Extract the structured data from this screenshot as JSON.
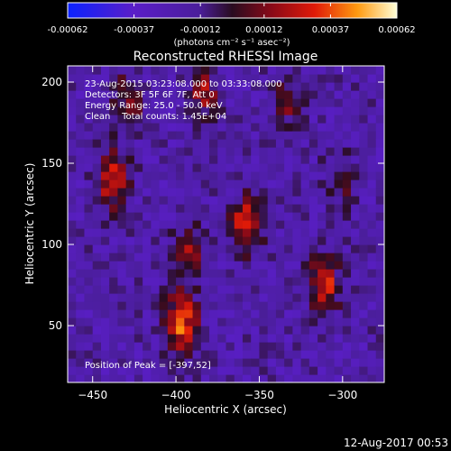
{
  "chart_data": {
    "type": "heatmap",
    "title": "Reconstructed RHESSI Image",
    "xlabel": "Heliocentric X (arcsec)",
    "ylabel": "Heliocentric Y (arcsec)",
    "xlim": [
      -465,
      -275
    ],
    "ylim": [
      15,
      210
    ],
    "x_ticks": [
      -450,
      -400,
      -350,
      -300
    ],
    "y_ticks": [
      50,
      100,
      150,
      200
    ],
    "colorbar": {
      "ticks": [
        "-0.00062",
        "-0.00037",
        "-0.00012",
        "0.00012",
        "0.00037",
        "0.00062"
      ],
      "tick_values": [
        -0.00062,
        -0.00037,
        -0.00012,
        0.00012,
        0.00037,
        0.00062
      ],
      "range": [
        -0.00062,
        0.00062
      ],
      "unit_label": "(photons cm⁻² s⁻¹ asec⁻²)"
    },
    "info_lines": [
      "23-Aug-2015 03:23:08.000 to 03:33:08.000",
      "Detectors: 3F 5F 6F 7F, Att 0",
      "Energy Range: 25.0 - 50.0 keV",
      "Clean    Total counts: 1.45E+04"
    ],
    "peak_label": "Position of Peak = [-397,52]",
    "peak_position": [
      -397,
      52
    ],
    "sources": [
      {
        "x": -397,
        "y": 52,
        "peak": 0.00062
      },
      {
        "x": -393,
        "y": 95,
        "peak": 0.00034
      },
      {
        "x": -358,
        "y": 112,
        "peak": 0.00052
      },
      {
        "x": -311,
        "y": 75,
        "peak": 0.0005
      },
      {
        "x": -302,
        "y": 140,
        "peak": 0.00022
      },
      {
        "x": -438,
        "y": 140,
        "peak": 0.00048
      },
      {
        "x": -429,
        "y": 190,
        "peak": 0.0003
      },
      {
        "x": -383,
        "y": 195,
        "peak": 0.00035
      },
      {
        "x": -333,
        "y": 190,
        "peak": 0.00028
      }
    ]
  },
  "footer_timestamp": "12-Aug-2017 00:53",
  "colors": {
    "background": "#000000",
    "foreground": "#ffffff"
  }
}
